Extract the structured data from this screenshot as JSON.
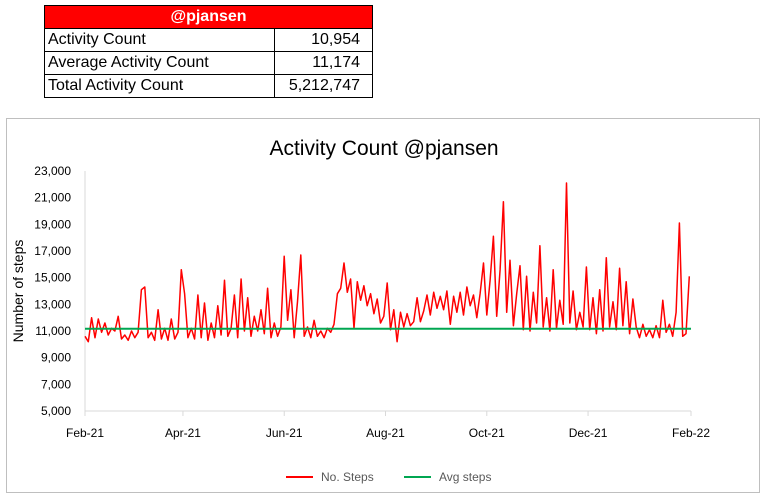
{
  "table": {
    "header": "@pjansen",
    "rows": [
      {
        "label": "Activity Count",
        "value": "10,954"
      },
      {
        "label": "Average Activity Count",
        "value": "11,174"
      },
      {
        "label": "Total Activity Count",
        "value": "5,212,747"
      }
    ]
  },
  "colors": {
    "header_bg": "#ff0000",
    "steps_line": "#ff0000",
    "avg_line": "#00a651"
  },
  "chart_data": {
    "type": "line",
    "title": "Activity Count @pjansen",
    "ylabel": "Number of steps",
    "xlabel": "",
    "ylim": [
      5000,
      23000
    ],
    "yticks": [
      5000,
      7000,
      9000,
      11000,
      13000,
      15000,
      17000,
      19000,
      21000,
      23000
    ],
    "ytick_labels": [
      "5,000",
      "7,000",
      "9,000",
      "11,000",
      "13,000",
      "15,000",
      "17,000",
      "19,000",
      "21,000",
      "23,000"
    ],
    "x_start": "2021-02-01",
    "x_end": "2022-02-01",
    "xticks": [
      "2021-02-01",
      "2021-04-01",
      "2021-06-01",
      "2021-08-01",
      "2021-10-01",
      "2021-12-01",
      "2022-02-01"
    ],
    "xtick_labels": [
      "Feb-21",
      "Apr-21",
      "Jun-21",
      "Aug-21",
      "Oct-21",
      "Dec-21",
      "Feb-22"
    ],
    "legend_position": "bottom",
    "grid": false,
    "series": [
      {
        "name": "No. Steps",
        "points": [
          [
            "2021-02-01",
            10600
          ],
          [
            "2021-02-03",
            10200
          ],
          [
            "2021-02-05",
            12000
          ],
          [
            "2021-02-07",
            10500
          ],
          [
            "2021-02-09",
            11900
          ],
          [
            "2021-02-11",
            10900
          ],
          [
            "2021-02-13",
            11600
          ],
          [
            "2021-02-15",
            10700
          ],
          [
            "2021-02-17",
            11200
          ],
          [
            "2021-02-19",
            11000
          ],
          [
            "2021-02-21",
            12100
          ],
          [
            "2021-02-23",
            10400
          ],
          [
            "2021-02-25",
            10700
          ],
          [
            "2021-02-27",
            10300
          ],
          [
            "2021-03-01",
            11000
          ],
          [
            "2021-03-03",
            10500
          ],
          [
            "2021-03-05",
            10900
          ],
          [
            "2021-03-07",
            14100
          ],
          [
            "2021-03-09",
            14300
          ],
          [
            "2021-03-11",
            10500
          ],
          [
            "2021-03-13",
            10900
          ],
          [
            "2021-03-15",
            10300
          ],
          [
            "2021-03-17",
            12600
          ],
          [
            "2021-03-19",
            10400
          ],
          [
            "2021-03-21",
            11200
          ],
          [
            "2021-03-23",
            10300
          ],
          [
            "2021-03-25",
            11900
          ],
          [
            "2021-03-27",
            10400
          ],
          [
            "2021-03-29",
            10900
          ],
          [
            "2021-03-31",
            15600
          ],
          [
            "2021-04-02",
            13800
          ],
          [
            "2021-04-04",
            10500
          ],
          [
            "2021-04-06",
            11200
          ],
          [
            "2021-04-08",
            10400
          ],
          [
            "2021-04-10",
            13700
          ],
          [
            "2021-04-12",
            10500
          ],
          [
            "2021-04-14",
            13100
          ],
          [
            "2021-04-16",
            10300
          ],
          [
            "2021-04-18",
            11600
          ],
          [
            "2021-04-20",
            10500
          ],
          [
            "2021-04-22",
            12900
          ],
          [
            "2021-04-24",
            10700
          ],
          [
            "2021-04-26",
            14800
          ],
          [
            "2021-04-28",
            10600
          ],
          [
            "2021-04-30",
            11200
          ],
          [
            "2021-05-02",
            13700
          ],
          [
            "2021-05-04",
            10500
          ],
          [
            "2021-05-06",
            14900
          ],
          [
            "2021-05-08",
            11000
          ],
          [
            "2021-05-10",
            13500
          ],
          [
            "2021-05-12",
            10600
          ],
          [
            "2021-05-14",
            12100
          ],
          [
            "2021-05-16",
            11000
          ],
          [
            "2021-05-18",
            12600
          ],
          [
            "2021-05-20",
            10800
          ],
          [
            "2021-05-22",
            14200
          ],
          [
            "2021-05-24",
            10500
          ],
          [
            "2021-05-26",
            11600
          ],
          [
            "2021-05-28",
            10600
          ],
          [
            "2021-05-30",
            11300
          ],
          [
            "2021-06-01",
            16600
          ],
          [
            "2021-06-03",
            11800
          ],
          [
            "2021-06-05",
            14100
          ],
          [
            "2021-06-07",
            10500
          ],
          [
            "2021-06-09",
            13200
          ],
          [
            "2021-06-11",
            16700
          ],
          [
            "2021-06-13",
            10600
          ],
          [
            "2021-06-15",
            11300
          ],
          [
            "2021-06-17",
            10500
          ],
          [
            "2021-06-19",
            11800
          ],
          [
            "2021-06-21",
            10600
          ],
          [
            "2021-06-23",
            11000
          ],
          [
            "2021-06-25",
            10500
          ],
          [
            "2021-06-27",
            11200
          ],
          [
            "2021-06-29",
            10900
          ],
          [
            "2021-07-01",
            11500
          ],
          [
            "2021-07-03",
            13800
          ],
          [
            "2021-07-05",
            14200
          ],
          [
            "2021-07-07",
            16100
          ],
          [
            "2021-07-09",
            13900
          ],
          [
            "2021-07-11",
            14900
          ],
          [
            "2021-07-13",
            11200
          ],
          [
            "2021-07-15",
            14700
          ],
          [
            "2021-07-17",
            13300
          ],
          [
            "2021-07-19",
            14400
          ],
          [
            "2021-07-21",
            12900
          ],
          [
            "2021-07-23",
            13800
          ],
          [
            "2021-07-25",
            12300
          ],
          [
            "2021-07-27",
            13400
          ],
          [
            "2021-07-29",
            11600
          ],
          [
            "2021-07-31",
            12100
          ],
          [
            "2021-08-02",
            14600
          ],
          [
            "2021-08-04",
            11100
          ],
          [
            "2021-08-06",
            12600
          ],
          [
            "2021-08-08",
            10200
          ],
          [
            "2021-08-10",
            12400
          ],
          [
            "2021-08-12",
            11300
          ],
          [
            "2021-08-14",
            12300
          ],
          [
            "2021-08-16",
            11400
          ],
          [
            "2021-08-18",
            11700
          ],
          [
            "2021-08-20",
            13500
          ],
          [
            "2021-08-22",
            11700
          ],
          [
            "2021-08-24",
            12500
          ],
          [
            "2021-08-26",
            13700
          ],
          [
            "2021-08-28",
            12200
          ],
          [
            "2021-08-30",
            13900
          ],
          [
            "2021-09-01",
            12700
          ],
          [
            "2021-09-03",
            13600
          ],
          [
            "2021-09-05",
            12600
          ],
          [
            "2021-09-07",
            14000
          ],
          [
            "2021-09-09",
            11500
          ],
          [
            "2021-09-11",
            13600
          ],
          [
            "2021-09-13",
            12400
          ],
          [
            "2021-09-15",
            13900
          ],
          [
            "2021-09-17",
            12200
          ],
          [
            "2021-09-19",
            14300
          ],
          [
            "2021-09-21",
            12900
          ],
          [
            "2021-09-23",
            13700
          ],
          [
            "2021-09-25",
            12000
          ],
          [
            "2021-09-27",
            13800
          ],
          [
            "2021-09-29",
            16100
          ],
          [
            "2021-10-01",
            12200
          ],
          [
            "2021-10-03",
            14800
          ],
          [
            "2021-10-05",
            18100
          ],
          [
            "2021-10-07",
            12100
          ],
          [
            "2021-10-09",
            15600
          ],
          [
            "2021-10-11",
            20700
          ],
          [
            "2021-10-13",
            12400
          ],
          [
            "2021-10-15",
            16300
          ],
          [
            "2021-10-17",
            11400
          ],
          [
            "2021-10-19",
            13800
          ],
          [
            "2021-10-21",
            15900
          ],
          [
            "2021-10-23",
            11100
          ],
          [
            "2021-10-25",
            15100
          ],
          [
            "2021-10-27",
            11000
          ],
          [
            "2021-10-29",
            13900
          ],
          [
            "2021-10-31",
            11600
          ],
          [
            "2021-11-02",
            17400
          ],
          [
            "2021-11-04",
            11300
          ],
          [
            "2021-11-06",
            13500
          ],
          [
            "2021-11-08",
            11000
          ],
          [
            "2021-11-10",
            15600
          ],
          [
            "2021-11-12",
            11200
          ],
          [
            "2021-11-14",
            13300
          ],
          [
            "2021-11-16",
            11500
          ],
          [
            "2021-11-18",
            22100
          ],
          [
            "2021-11-20",
            11600
          ],
          [
            "2021-11-22",
            14000
          ],
          [
            "2021-11-24",
            11100
          ],
          [
            "2021-11-26",
            12400
          ],
          [
            "2021-11-28",
            11300
          ],
          [
            "2021-11-30",
            15800
          ],
          [
            "2021-12-02",
            11100
          ],
          [
            "2021-12-04",
            13500
          ],
          [
            "2021-12-06",
            10800
          ],
          [
            "2021-12-08",
            14100
          ],
          [
            "2021-12-10",
            11000
          ],
          [
            "2021-12-12",
            16500
          ],
          [
            "2021-12-14",
            11300
          ],
          [
            "2021-12-16",
            13200
          ],
          [
            "2021-12-18",
            11100
          ],
          [
            "2021-12-20",
            15700
          ],
          [
            "2021-12-22",
            11400
          ],
          [
            "2021-12-24",
            14700
          ],
          [
            "2021-12-26",
            10800
          ],
          [
            "2021-12-28",
            13400
          ],
          [
            "2021-12-30",
            11300
          ],
          [
            "2022-01-01",
            10500
          ],
          [
            "2022-01-03",
            11500
          ],
          [
            "2022-01-05",
            10600
          ],
          [
            "2022-01-07",
            11100
          ],
          [
            "2022-01-09",
            10500
          ],
          [
            "2022-01-11",
            11400
          ],
          [
            "2022-01-13",
            10500
          ],
          [
            "2022-01-15",
            13300
          ],
          [
            "2022-01-17",
            10900
          ],
          [
            "2022-01-19",
            11500
          ],
          [
            "2022-01-21",
            10600
          ],
          [
            "2022-01-23",
            12400
          ],
          [
            "2022-01-25",
            19100
          ],
          [
            "2022-01-27",
            10600
          ],
          [
            "2022-01-29",
            10800
          ],
          [
            "2022-01-31",
            15100
          ]
        ]
      },
      {
        "name": "Avg steps",
        "points": [
          [
            "2021-02-01",
            11174
          ],
          [
            "2022-02-01",
            11174
          ]
        ]
      }
    ]
  }
}
